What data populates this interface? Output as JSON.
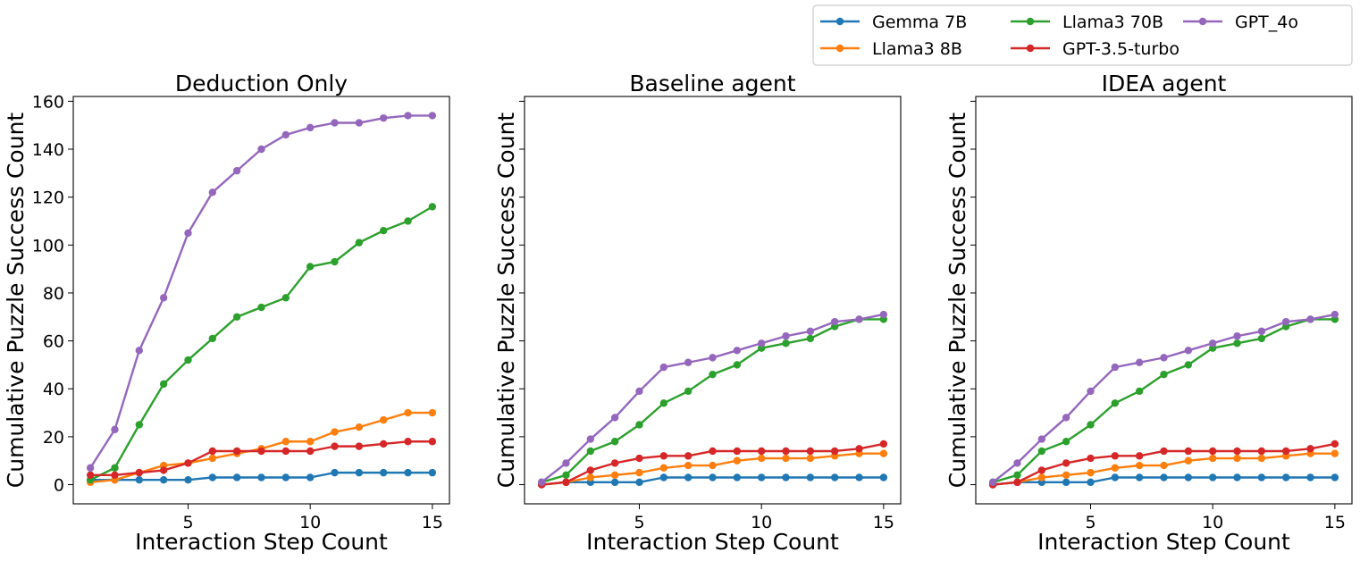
{
  "legend": {
    "placement": "top-right, outside plots",
    "entries": [
      {
        "label": "Gemma 7B",
        "color": "#1f77b4"
      },
      {
        "label": "Llama3 8B",
        "color": "#ff7f0e"
      },
      {
        "label": "Llama3 70B",
        "color": "#2ca02c"
      },
      {
        "label": "GPT-3.5-turbo",
        "color": "#d62728"
      },
      {
        "label": "GPT_4o",
        "color": "#9467bd"
      }
    ]
  },
  "chart_data": [
    {
      "type": "line",
      "title": "Deduction Only",
      "xlabel": "Interaction Step Count",
      "ylabel": "Cumulative Puzzle Success Count",
      "xlim": [
        0.3,
        15.7
      ],
      "ylim": [
        -8,
        162
      ],
      "xticks": [
        5,
        10,
        15
      ],
      "yticks": [
        0,
        20,
        40,
        60,
        80,
        100,
        120,
        140,
        160
      ],
      "show_ytick_labels": true,
      "grid": false,
      "x": [
        1,
        2,
        3,
        4,
        5,
        6,
        7,
        8,
        9,
        10,
        11,
        12,
        13,
        14,
        15
      ],
      "series": [
        {
          "name": "Gemma 7B",
          "color": "#1f77b4",
          "values": [
            2,
            2,
            2,
            2,
            2,
            3,
            3,
            3,
            3,
            3,
            5,
            5,
            5,
            5,
            5
          ]
        },
        {
          "name": "Llama3 8B",
          "color": "#ff7f0e",
          "values": [
            1,
            2,
            5,
            8,
            9,
            11,
            13,
            15,
            18,
            18,
            22,
            24,
            27,
            30,
            30
          ]
        },
        {
          "name": "Llama3 70B",
          "color": "#2ca02c",
          "values": [
            2,
            7,
            25,
            42,
            52,
            61,
            70,
            74,
            78,
            91,
            93,
            101,
            106,
            110,
            116
          ]
        },
        {
          "name": "GPT-3.5-turbo",
          "color": "#d62728",
          "values": [
            4,
            4,
            5,
            6,
            9,
            14,
            14,
            14,
            14,
            14,
            16,
            16,
            17,
            18,
            18
          ]
        },
        {
          "name": "GPT_4o",
          "color": "#9467bd",
          "values": [
            7,
            23,
            56,
            78,
            105,
            122,
            131,
            140,
            146,
            149,
            151,
            151,
            153,
            154,
            154
          ]
        }
      ]
    },
    {
      "type": "line",
      "title": "Baseline agent",
      "xlabel": "Interaction Step Count",
      "ylabel": "Cumulative Puzzle Success Count",
      "xlim": [
        0.3,
        15.7
      ],
      "ylim": [
        -8,
        162
      ],
      "xticks": [
        5,
        10,
        15
      ],
      "yticks": [
        0,
        20,
        40,
        60,
        80,
        100,
        120,
        140,
        160
      ],
      "show_ytick_labels": false,
      "grid": false,
      "x": [
        1,
        2,
        3,
        4,
        5,
        6,
        7,
        8,
        9,
        10,
        11,
        12,
        13,
        14,
        15
      ],
      "series": [
        {
          "name": "Gemma 7B",
          "color": "#1f77b4",
          "values": [
            0,
            1,
            1,
            1,
            1,
            3,
            3,
            3,
            3,
            3,
            3,
            3,
            3,
            3,
            3
          ]
        },
        {
          "name": "Llama3 8B",
          "color": "#ff7f0e",
          "values": [
            0,
            1,
            3,
            4,
            5,
            7,
            8,
            8,
            10,
            11,
            11,
            11,
            12,
            13,
            13
          ]
        },
        {
          "name": "Llama3 70B",
          "color": "#2ca02c",
          "values": [
            1,
            4,
            14,
            18,
            25,
            34,
            39,
            46,
            50,
            57,
            59,
            61,
            66,
            69,
            69
          ]
        },
        {
          "name": "GPT-3.5-turbo",
          "color": "#d62728",
          "values": [
            0,
            1,
            6,
            9,
            11,
            12,
            12,
            14,
            14,
            14,
            14,
            14,
            14,
            15,
            17
          ]
        },
        {
          "name": "GPT_4o",
          "color": "#9467bd",
          "values": [
            1,
            9,
            19,
            28,
            39,
            49,
            51,
            53,
            56,
            59,
            62,
            64,
            68,
            69,
            71
          ]
        }
      ]
    },
    {
      "type": "line",
      "title": "IDEA agent",
      "xlabel": "Interaction Step Count",
      "ylabel": "Cumulative Puzzle Success Count",
      "xlim": [
        0.3,
        15.7
      ],
      "ylim": [
        -8,
        162
      ],
      "xticks": [
        5,
        10,
        15
      ],
      "yticks": [
        0,
        20,
        40,
        60,
        80,
        100,
        120,
        140,
        160
      ],
      "show_ytick_labels": false,
      "grid": false,
      "x": [
        1,
        2,
        3,
        4,
        5,
        6,
        7,
        8,
        9,
        10,
        11,
        12,
        13,
        14,
        15
      ],
      "series": [
        {
          "name": "Gemma 7B",
          "color": "#1f77b4",
          "values": [
            0,
            1,
            1,
            1,
            1,
            3,
            3,
            3,
            3,
            3,
            3,
            3,
            3,
            3,
            3
          ]
        },
        {
          "name": "Llama3 8B",
          "color": "#ff7f0e",
          "values": [
            0,
            1,
            3,
            4,
            5,
            7,
            8,
            8,
            10,
            11,
            11,
            11,
            12,
            13,
            13
          ]
        },
        {
          "name": "Llama3 70B",
          "color": "#2ca02c",
          "values": [
            1,
            4,
            14,
            18,
            25,
            34,
            39,
            46,
            50,
            57,
            59,
            61,
            66,
            69,
            69
          ]
        },
        {
          "name": "GPT-3.5-turbo",
          "color": "#d62728",
          "values": [
            0,
            1,
            6,
            9,
            11,
            12,
            12,
            14,
            14,
            14,
            14,
            14,
            14,
            15,
            17
          ]
        },
        {
          "name": "GPT_4o",
          "color": "#9467bd",
          "values": [
            1,
            9,
            19,
            28,
            39,
            49,
            51,
            53,
            56,
            59,
            62,
            64,
            68,
            69,
            71
          ]
        }
      ]
    }
  ]
}
